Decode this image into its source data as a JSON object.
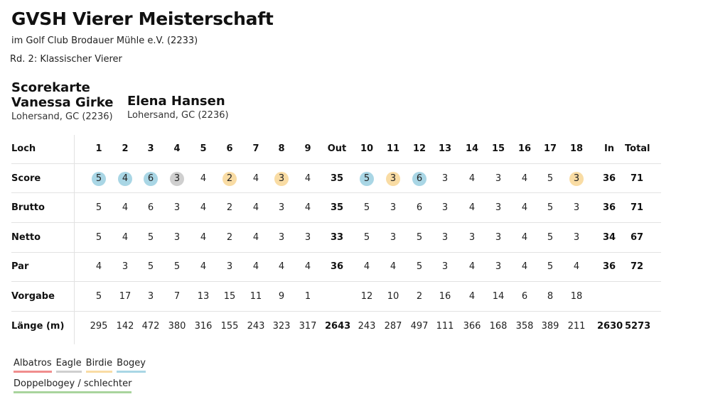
{
  "header": {
    "title": "GVSH Vierer Meisterschaft",
    "subtitle": "im Golf Club Brodauer Mühle e.V. (2233)",
    "round": "Rd. 2: Klassischer Vierer"
  },
  "card_label": "Scorekarte",
  "players": [
    {
      "name": "Vanessa Girke",
      "club": "Lohersand, GC (2236)"
    },
    {
      "name": "Elena Hansen",
      "club": "Lohersand, GC (2236)"
    }
  ],
  "table": {
    "columns": [
      "1",
      "2",
      "3",
      "4",
      "5",
      "6",
      "7",
      "8",
      "9",
      "Out",
      "10",
      "11",
      "12",
      "13",
      "14",
      "15",
      "16",
      "17",
      "18",
      "In",
      "Total"
    ],
    "summary_columns": [
      "Out",
      "In",
      "Total"
    ],
    "rows": [
      {
        "key": "loch",
        "label": "Loch"
      },
      {
        "key": "score",
        "label": "Score",
        "values": [
          "5",
          "4",
          "6",
          "3",
          "4",
          "2",
          "4",
          "3",
          "4",
          "35",
          "5",
          "3",
          "6",
          "3",
          "4",
          "3",
          "4",
          "5",
          "3",
          "36",
          "71"
        ],
        "marks": [
          "bogey",
          "bogey",
          "bogey",
          "eagle",
          "",
          "birdie",
          "",
          "birdie",
          "",
          "",
          "bogey",
          "birdie",
          "bogey",
          "",
          "",
          "",
          "",
          "",
          "birdie",
          "",
          ""
        ]
      },
      {
        "key": "brutto",
        "label": "Brutto",
        "values": [
          "5",
          "4",
          "6",
          "3",
          "4",
          "2",
          "4",
          "3",
          "4",
          "35",
          "5",
          "3",
          "6",
          "3",
          "4",
          "3",
          "4",
          "5",
          "3",
          "36",
          "71"
        ]
      },
      {
        "key": "netto",
        "label": "Netto",
        "values": [
          "5",
          "4",
          "5",
          "3",
          "4",
          "2",
          "4",
          "3",
          "3",
          "33",
          "5",
          "3",
          "5",
          "3",
          "3",
          "3",
          "4",
          "5",
          "3",
          "34",
          "67"
        ]
      },
      {
        "key": "par",
        "label": "Par",
        "values": [
          "4",
          "3",
          "5",
          "5",
          "4",
          "3",
          "4",
          "4",
          "4",
          "36",
          "4",
          "4",
          "5",
          "3",
          "4",
          "3",
          "4",
          "5",
          "4",
          "36",
          "72"
        ]
      },
      {
        "key": "vorgabe",
        "label": "Vorgabe",
        "values": [
          "5",
          "17",
          "3",
          "7",
          "13",
          "15",
          "11",
          "9",
          "1",
          "",
          "12",
          "10",
          "2",
          "16",
          "4",
          "14",
          "6",
          "8",
          "18",
          "",
          ""
        ]
      },
      {
        "key": "laenge",
        "label": "Länge (m)",
        "values": [
          "295",
          "142",
          "472",
          "380",
          "316",
          "155",
          "243",
          "323",
          "317",
          "2643",
          "243",
          "287",
          "497",
          "111",
          "366",
          "168",
          "358",
          "389",
          "211",
          "2630",
          "5273"
        ]
      }
    ]
  },
  "legend": [
    {
      "key": "albatros",
      "label": "Albatros",
      "color": "#f08d8d"
    },
    {
      "key": "eagle",
      "label": "Eagle",
      "color": "#cfcfcf"
    },
    {
      "key": "birdie",
      "label": "Birdie",
      "color": "#f9dca4"
    },
    {
      "key": "bogey",
      "label": "Bogey",
      "color": "#a9d6e5"
    },
    {
      "key": "doppelbogey",
      "label": "Doppelbogey / schlechter",
      "color": "#a9d49d"
    }
  ]
}
